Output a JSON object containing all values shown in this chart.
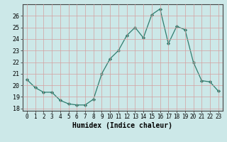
{
  "x": [
    0,
    1,
    2,
    3,
    4,
    5,
    6,
    7,
    8,
    9,
    10,
    11,
    12,
    13,
    14,
    15,
    16,
    17,
    18,
    19,
    20,
    21,
    22,
    23
  ],
  "y": [
    20.5,
    19.8,
    19.4,
    19.4,
    18.7,
    18.4,
    18.3,
    18.3,
    18.8,
    21.0,
    22.3,
    23.0,
    24.3,
    25.0,
    24.1,
    26.1,
    26.6,
    23.6,
    25.1,
    24.8,
    22.0,
    20.4,
    20.3,
    19.5
  ],
  "line_color": "#2e7d6e",
  "marker": "D",
  "marker_size": 2.2,
  "bg_color": "#cce8e8",
  "grid_color": "#d4a0a0",
  "xlabel": "Humidex (Indice chaleur)",
  "xlim": [
    -0.5,
    23.5
  ],
  "ylim": [
    17.8,
    27.0
  ],
  "yticks": [
    18,
    19,
    20,
    21,
    22,
    23,
    24,
    25,
    26
  ],
  "xticks": [
    0,
    1,
    2,
    3,
    4,
    5,
    6,
    7,
    8,
    9,
    10,
    11,
    12,
    13,
    14,
    15,
    16,
    17,
    18,
    19,
    20,
    21,
    22,
    23
  ]
}
